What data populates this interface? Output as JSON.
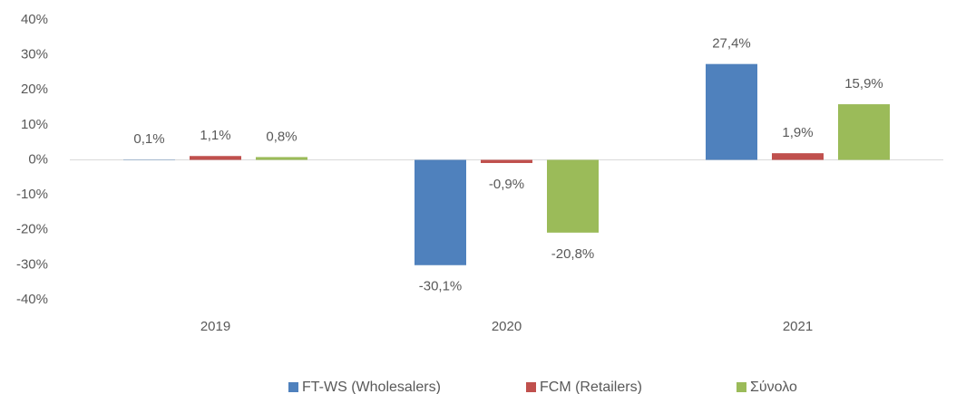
{
  "chart_data": {
    "type": "bar",
    "categories": [
      "2019",
      "2020",
      "2021"
    ],
    "series": [
      {
        "name": "FT-WS (Wholesalers)",
        "color": "#4f81bd",
        "values": [
          0.1,
          -30.1,
          27.4
        ],
        "value_labels": [
          "0,1%",
          "-30,1%",
          "27,4%"
        ]
      },
      {
        "name": "FCM (Retailers)",
        "color": "#c0504d",
        "values": [
          1.1,
          -0.9,
          1.9
        ],
        "value_labels": [
          "1,1%",
          "-0,9%",
          "1,9%"
        ]
      },
      {
        "name": "Σύνολο",
        "color": "#9bbb59",
        "values": [
          0.8,
          -20.8,
          15.9
        ],
        "value_labels": [
          "0,8%",
          "-20,8%",
          "15,9%"
        ]
      }
    ],
    "ylim": [
      -40,
      40
    ],
    "yticks": [
      {
        "value": -40,
        "label": "-40%"
      },
      {
        "value": -30,
        "label": "-30%"
      },
      {
        "value": -20,
        "label": "-20%"
      },
      {
        "value": -10,
        "label": "-10%"
      },
      {
        "value": 0,
        "label": "0%"
      },
      {
        "value": 10,
        "label": "10%"
      },
      {
        "value": 20,
        "label": "20%"
      },
      {
        "value": 30,
        "label": "30%"
      },
      {
        "value": 40,
        "label": "40%"
      }
    ],
    "legend": "bottom"
  }
}
